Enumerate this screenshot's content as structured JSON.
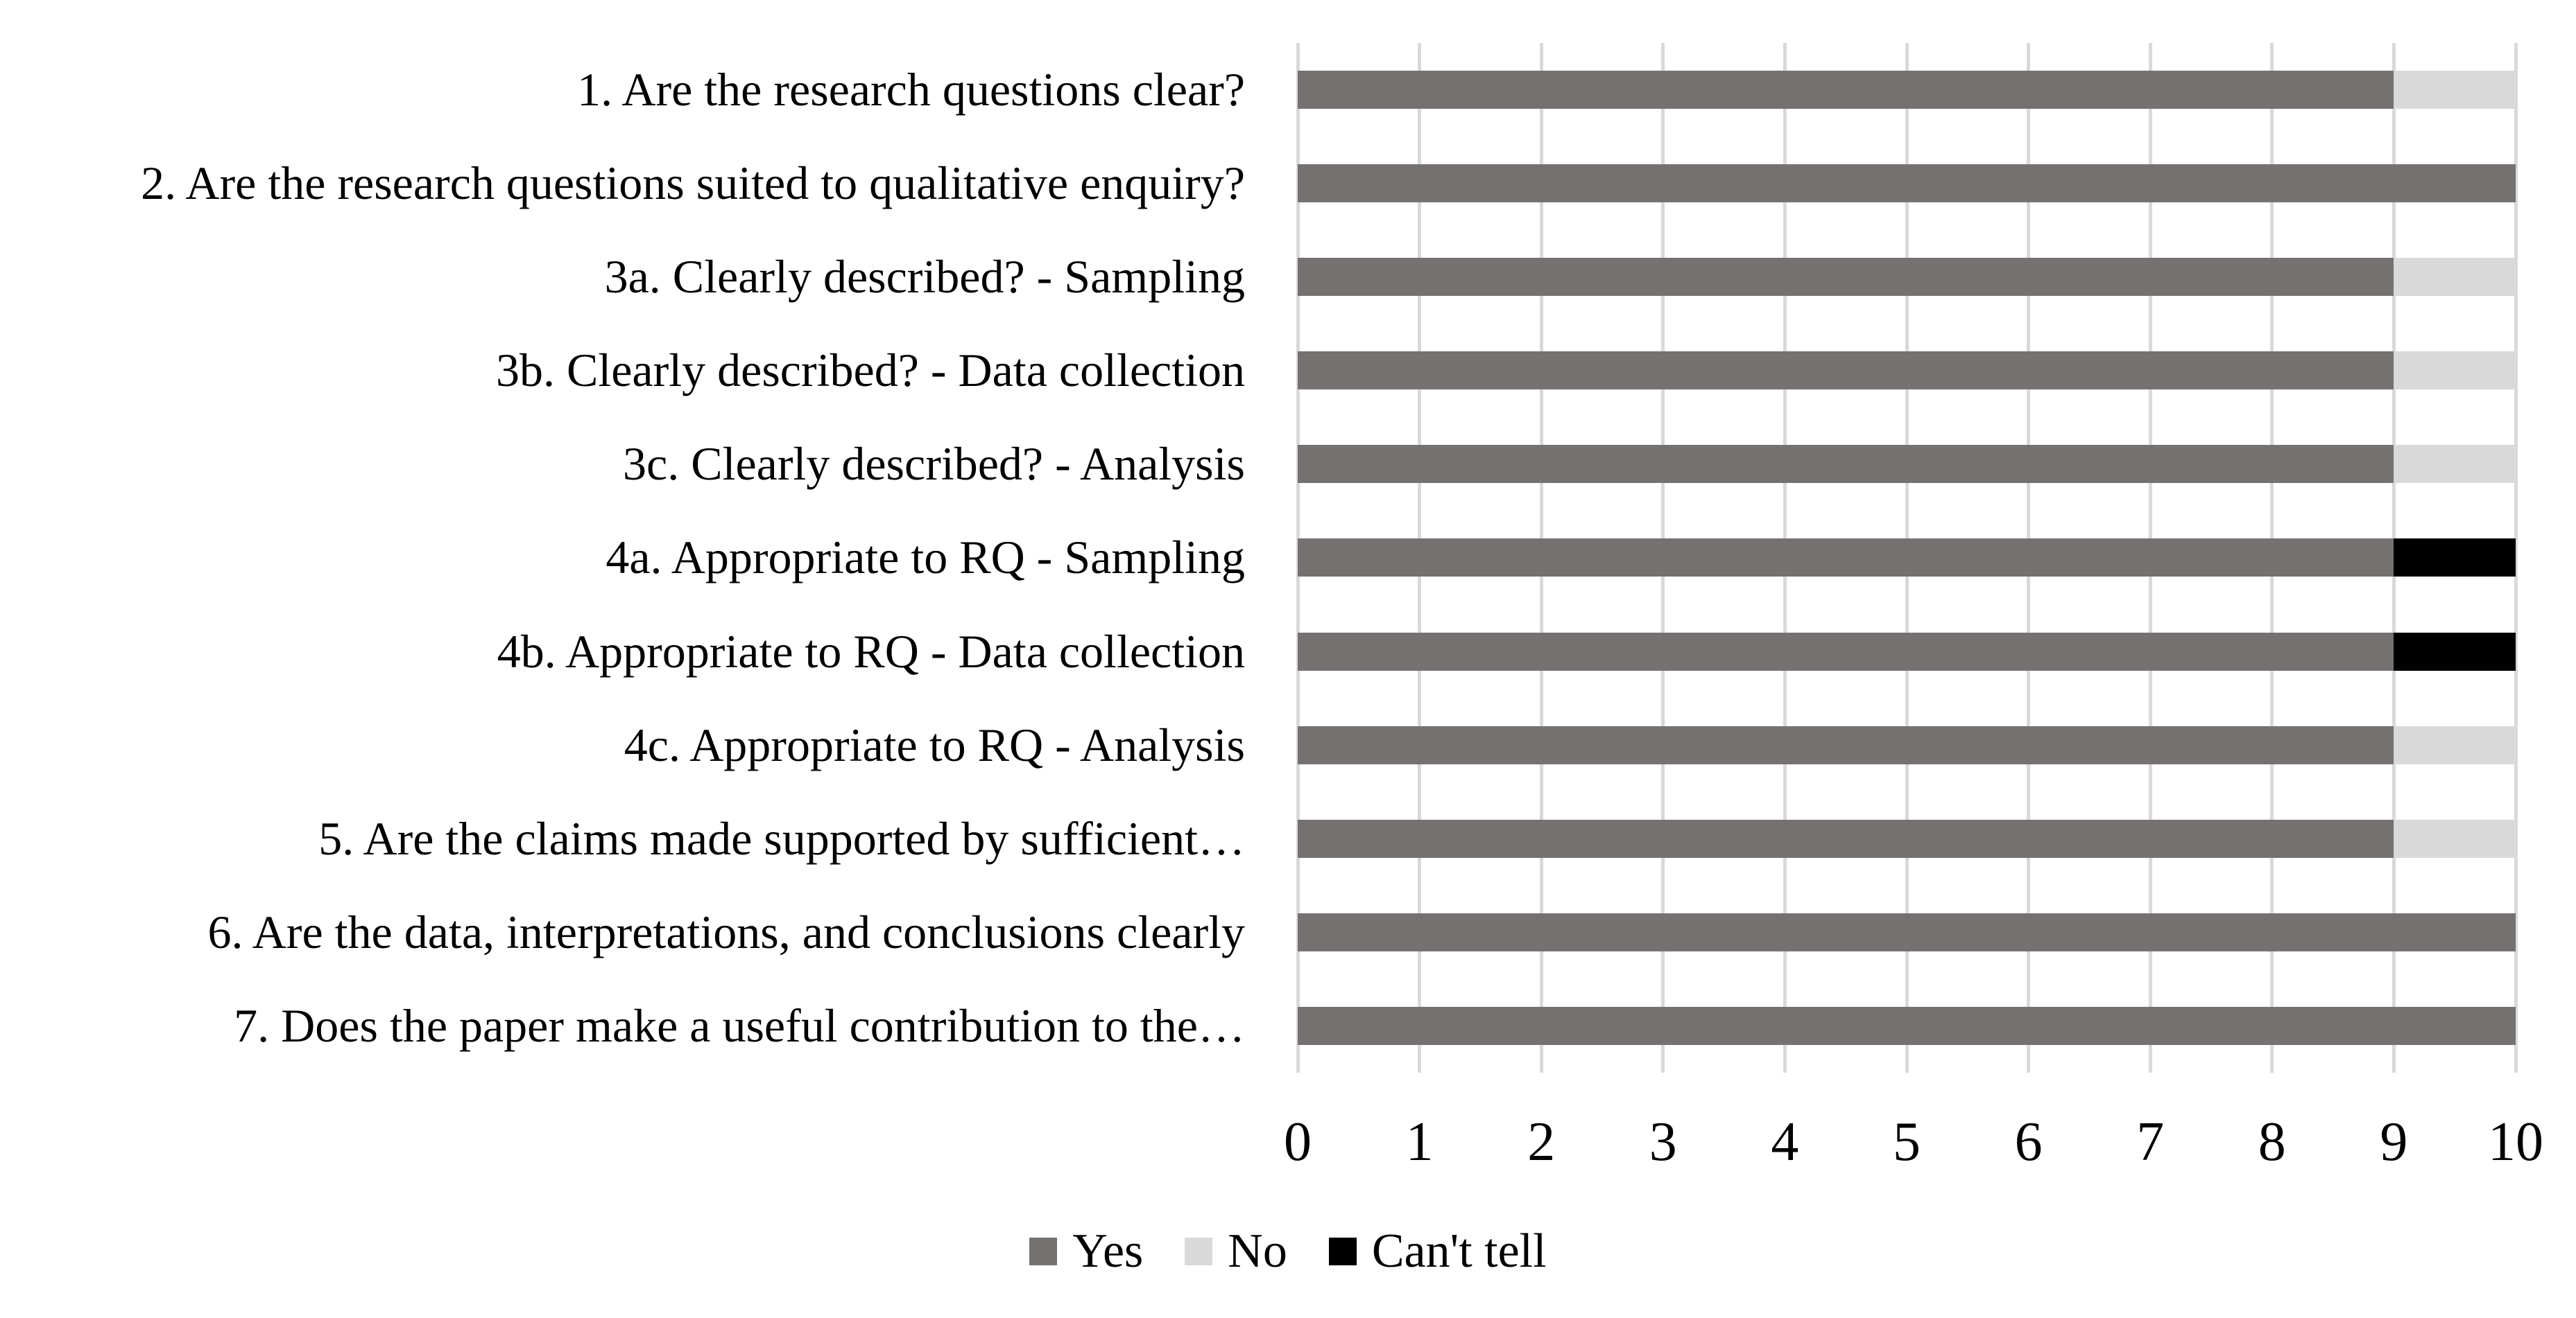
{
  "chart_data": {
    "type": "bar",
    "orientation": "horizontal",
    "stacked": true,
    "title": "",
    "categories": [
      "1. Are the research questions clear?",
      "2. Are the research questions suited to qualitative enquiry?",
      "3a. Clearly described? - Sampling",
      "3b. Clearly described? - Data collection",
      "3c. Clearly described? - Analysis",
      "4a. Appropriate to RQ - Sampling",
      "4b. Appropriate to RQ - Data collection",
      "4c. Appropriate to RQ - Analysis",
      "5. Are the claims made supported by sufficient…",
      "6. Are the data, interpretations, and conclusions clearly",
      "7. Does the paper make a useful contribution to the…"
    ],
    "series": [
      {
        "name": "Yes",
        "color": "#767171",
        "values": [
          9,
          10,
          9,
          9,
          9,
          9,
          9,
          9,
          9,
          10,
          10
        ]
      },
      {
        "name": "No",
        "color": "#D9D9D9",
        "values": [
          1,
          0,
          1,
          1,
          1,
          0,
          0,
          1,
          1,
          0,
          0
        ]
      },
      {
        "name": "Can't tell",
        "color": "#000000",
        "values": [
          0,
          0,
          0,
          0,
          0,
          1,
          1,
          0,
          0,
          0,
          0
        ]
      }
    ],
    "xlabel": "",
    "ylabel": "",
    "xlim": [
      0,
      10
    ],
    "x_ticks": [
      0,
      1,
      2,
      3,
      4,
      5,
      6,
      7,
      8,
      9,
      10
    ],
    "grid": true,
    "gridline_color": "#D9D9D9",
    "legend_position": "bottom"
  },
  "legend": {
    "items": [
      {
        "label": "Yes",
        "color": "#767171"
      },
      {
        "label": "No",
        "color": "#D9D9D9"
      },
      {
        "label": "Can't tell",
        "color": "#000000"
      }
    ]
  },
  "colors": {
    "background": "#FFFFFF",
    "text": "#000000"
  }
}
